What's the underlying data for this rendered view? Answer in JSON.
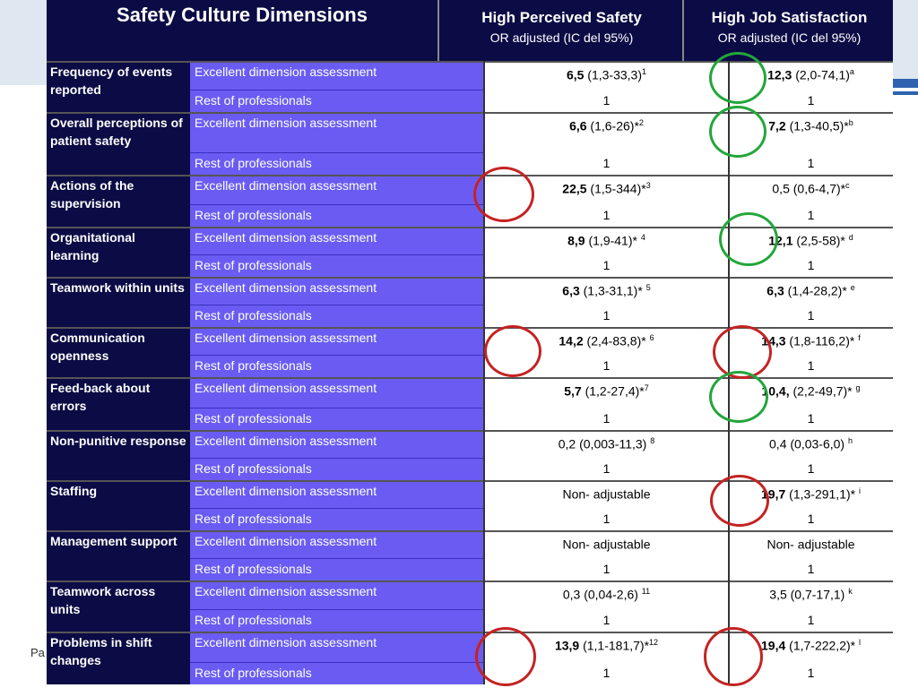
{
  "header": {
    "title": "Safety Culture Dimensions",
    "col1_title": "High Perceived Safety",
    "col1_sub": "OR adjusted    (IC del 95%)",
    "col2_title": "High Job Satisfaction",
    "col2_sub": "OR adjusted    (IC del 95%)"
  },
  "footer": {
    "text": "Pa"
  },
  "rows": [
    {
      "dim": "Frequency of events reported",
      "cat1": "Excellent dimension assessment",
      "cat2": "Rest of professionals",
      "ps_bold": "6,5",
      "ps_rest": " (1,3-33,3)",
      "ps_sup": "1",
      "ps_ref": "1",
      "js_bold": "12,3",
      "js_rest": " (2,0-74,1)",
      "js_sup": "a",
      "js_ref": "1"
    },
    {
      "dim": "Overall perceptions of patient safety",
      "cat1": "Excellent dimension assessment",
      "cat2": "Rest of professionals",
      "ps_bold": "6,6",
      "ps_rest": " (1,6-26)*",
      "ps_sup": "2",
      "ps_ref": "1",
      "js_bold": "7,2",
      "js_rest": " (1,3-40,5)*",
      "js_sup": "b",
      "js_ref": "1"
    },
    {
      "dim": "Actions of the supervision",
      "cat1": "Excellent dimension assessment",
      "cat2": "Rest of professionals",
      "ps_bold": "22,5",
      "ps_rest": " (1,5-344)*",
      "ps_sup": "3",
      "ps_ref": "1",
      "js_bold": "",
      "js_rest": "0,5 (0,6-4,7)*",
      "js_sup": "c",
      "js_ref": "1"
    },
    {
      "dim": "Organitational learning",
      "cat1": "Excellent dimension assessment",
      "cat2": "Rest of professionals",
      "ps_bold": "8,9",
      "ps_rest": " (1,9-41)* ",
      "ps_sup": "4",
      "ps_ref": "1",
      "js_bold": "12,1",
      "js_rest": " (2,5-58)* ",
      "js_sup": "d",
      "js_ref": "1"
    },
    {
      "dim": "Teamwork within units",
      "cat1": "Excellent dimension assessment",
      "cat2": "Rest of professionals",
      "ps_bold": "6,3",
      "ps_rest": " (1,3-31,1)* ",
      "ps_sup": "5",
      "ps_ref": "1",
      "js_bold": "6,3",
      "js_rest": " (1,4-28,2)* ",
      "js_sup": "e",
      "js_ref": "1"
    },
    {
      "dim": "Communication openness",
      "cat1": "Excellent dimension assessment",
      "cat2": "Rest of professionals",
      "ps_bold": "14,2",
      "ps_rest": " (2,4-83,8)* ",
      "ps_sup": "6",
      "ps_ref": "1",
      "js_bold": "14,3",
      "js_rest": " (1,8-116,2)* ",
      "js_sup": "f",
      "js_ref": "1"
    },
    {
      "dim": "Feed-back about errors",
      "cat1": "Excellent dimension assessment",
      "cat2": "Rest of professionals",
      "ps_bold": "5,7",
      "ps_rest": " (1,2-27,4)*",
      "ps_sup": "7",
      "ps_ref": "1",
      "js_bold": "10,4,",
      "js_rest": " (2,2-49,7)* ",
      "js_sup": "g",
      "js_ref": "1"
    },
    {
      "dim": "Non-punitive response",
      "cat1": "Excellent dimension assessment",
      "cat2": "Rest of professionals",
      "ps_bold": "",
      "ps_rest": "0,2 (0,003-11,3) ",
      "ps_sup": "8",
      "ps_ref": "1",
      "js_bold": "",
      "js_rest": "0,4 (0,03-6,0) ",
      "js_sup": "h",
      "js_ref": "1"
    },
    {
      "dim": "Staffing",
      "cat1": "Excellent dimension assessment",
      "cat2": "Rest of professionals",
      "ps_bold": "",
      "ps_rest": "Non- adjustable",
      "ps_sup": "",
      "ps_ref": "1",
      "js_bold": "19,7",
      "js_rest": " (1,3-291,1)* ",
      "js_sup": "i",
      "js_ref": "1"
    },
    {
      "dim": "Management support",
      "cat1": "Excellent dimension assessment",
      "cat2": "Rest of professionals",
      "ps_bold": "",
      "ps_rest": "Non- adjustable",
      "ps_sup": "",
      "ps_ref": "1",
      "js_bold": "",
      "js_rest": "Non- adjustable",
      "js_sup": "",
      "js_ref": "1"
    },
    {
      "dim": "Teamwork across units",
      "cat1": "Excellent dimension assessment",
      "cat2": "Rest of professionals",
      "ps_bold": "",
      "ps_rest": "0,3 (0,04-2,6) ",
      "ps_sup": "11",
      "ps_ref": "1",
      "js_bold": "",
      "js_rest": "3,5 (0,7-17,1) ",
      "js_sup": "k",
      "js_ref": "1"
    },
    {
      "dim": "Problems in shift changes",
      "cat1": "Excellent dimension assessment",
      "cat2": "Rest of professionals",
      "ps_bold": "13,9",
      "ps_rest": " (1,1-181,7)*",
      "ps_sup": "12",
      "ps_ref": "1",
      "js_bold": "19,4",
      "js_rest": " (1,7-222,2)* ",
      "js_sup": "l",
      "js_ref": "1"
    }
  ]
}
